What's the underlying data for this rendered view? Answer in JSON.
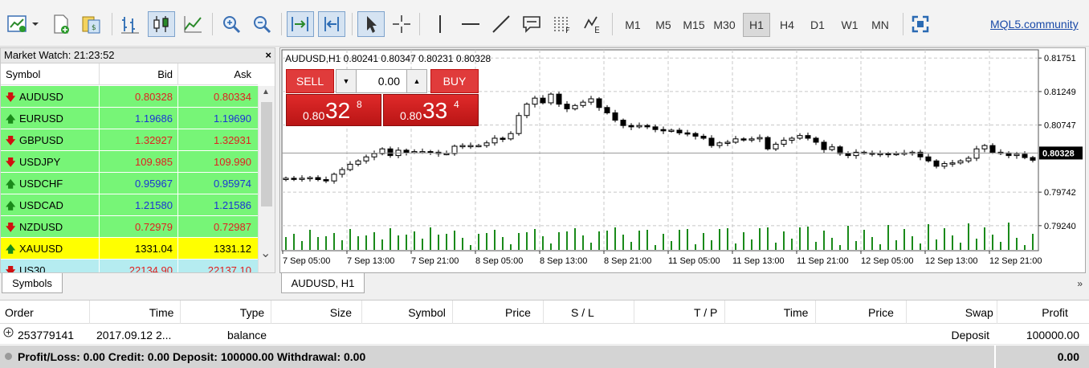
{
  "toolbar": {
    "timeframes": [
      "M1",
      "M5",
      "M15",
      "M30",
      "H1",
      "H4",
      "D1",
      "W1",
      "MN"
    ],
    "active_timeframe": "H1",
    "link_label": "MQL5.community"
  },
  "market_watch": {
    "title": "Market Watch: 21:23:52",
    "close_label": "×",
    "columns": {
      "symbol": "Symbol",
      "bid": "Bid",
      "ask": "Ask"
    },
    "rows": [
      {
        "symbol": "AUDUSD",
        "bid": "0.80328",
        "ask": "0.80334",
        "dir": "down",
        "bg": "#77f577",
        "color": "#e02020"
      },
      {
        "symbol": "EURUSD",
        "bid": "1.19686",
        "ask": "1.19690",
        "dir": "up",
        "bg": "#77f577",
        "color": "#1a35d6"
      },
      {
        "symbol": "GBPUSD",
        "bid": "1.32927",
        "ask": "1.32931",
        "dir": "down",
        "bg": "#77f577",
        "color": "#e02020"
      },
      {
        "symbol": "USDJPY",
        "bid": "109.985",
        "ask": "109.990",
        "dir": "down",
        "bg": "#77f577",
        "color": "#e02020"
      },
      {
        "symbol": "USDCHF",
        "bid": "0.95967",
        "ask": "0.95974",
        "dir": "up",
        "bg": "#77f577",
        "color": "#1a35d6"
      },
      {
        "symbol": "USDCAD",
        "bid": "1.21580",
        "ask": "1.21586",
        "dir": "up",
        "bg": "#77f577",
        "color": "#1a35d6"
      },
      {
        "symbol": "NZDUSD",
        "bid": "0.72979",
        "ask": "0.72987",
        "dir": "down",
        "bg": "#77f577",
        "color": "#e02020"
      },
      {
        "symbol": "XAUUSD",
        "bid": "1331.04",
        "ask": "1331.12",
        "dir": "up",
        "bg": "#ffff00",
        "color": "#000000"
      },
      {
        "symbol": "US30",
        "bid": "22134.90",
        "ask": "22137.10",
        "dir": "down",
        "bg": "#b5ecf0",
        "color": "#e02020"
      }
    ],
    "tab_label": "Symbols"
  },
  "chart": {
    "header": "AUDUSD,H1  0.80241  0.80347  0.80231  0.80328",
    "tab_label": "AUDUSD, H1",
    "current_price": "0.80328",
    "price_labels": [
      "0.81751",
      "0.81249",
      "0.80747",
      "0.79742",
      "0.79240"
    ],
    "time_labels": [
      "7 Sep 05:00",
      "7 Sep 13:00",
      "7 Sep 21:00",
      "8 Sep 05:00",
      "8 Sep 13:00",
      "8 Sep 21:00",
      "11 Sep 05:00",
      "11 Sep 13:00",
      "11 Sep 21:00",
      "12 Sep 05:00",
      "12 Sep 13:00",
      "12 Sep 21:00"
    ],
    "trade_panel": {
      "sell_label": "SELL",
      "buy_label": "BUY",
      "lot_value": "0.00",
      "sell_price": {
        "small": "0.80",
        "big": "32",
        "sup": "8"
      },
      "buy_price": {
        "small": "0.80",
        "big": "33",
        "sup": "4"
      }
    },
    "colors": {
      "volume": "#1a8a1a",
      "grid": "#c8c8c8"
    }
  },
  "chart_data": {
    "type": "candlestick",
    "symbol": "AUDUSD",
    "timeframe": "H1",
    "y_ticks": [
      0.81751,
      0.81249,
      0.80747,
      0.79742,
      0.7924
    ],
    "ylim": [
      0.78865,
      0.81874
    ],
    "current_price": 0.80328,
    "x_ticks": [
      "7 Sep 05:00",
      "7 Sep 13:00",
      "7 Sep 21:00",
      "8 Sep 05:00",
      "8 Sep 13:00",
      "8 Sep 21:00",
      "11 Sep 05:00",
      "11 Sep 13:00",
      "11 Sep 21:00",
      "12 Sep 05:00",
      "12 Sep 13:00",
      "12 Sep 21:00"
    ],
    "closes": [
      0.7995,
      0.7994,
      0.7995,
      0.7996,
      0.7993,
      0.7991,
      0.8001,
      0.8008,
      0.8016,
      0.8021,
      0.8027,
      0.8032,
      0.8039,
      0.8029,
      0.8037,
      0.8034,
      0.8035,
      0.8035,
      0.8034,
      0.8032,
      0.8032,
      0.8043,
      0.8044,
      0.8044,
      0.8044,
      0.8048,
      0.8055,
      0.8054,
      0.8062,
      0.8089,
      0.8106,
      0.8115,
      0.8108,
      0.8121,
      0.8106,
      0.8099,
      0.8104,
      0.8109,
      0.8114,
      0.8101,
      0.8093,
      0.8082,
      0.8074,
      0.8072,
      0.8074,
      0.8072,
      0.8068,
      0.8066,
      0.8067,
      0.8063,
      0.8062,
      0.8058,
      0.8055,
      0.8044,
      0.8048,
      0.8049,
      0.8054,
      0.8053,
      0.8054,
      0.8056,
      0.8039,
      0.8046,
      0.8052,
      0.8055,
      0.8059,
      0.8055,
      0.8049,
      0.8038,
      0.8042,
      0.8032,
      0.8029,
      0.8034,
      0.8033,
      0.8031,
      0.8032,
      0.8031,
      0.8032,
      0.8033,
      0.8034,
      0.8027,
      0.8021,
      0.8013,
      0.8017,
      0.8018,
      0.8021,
      0.8025,
      0.8039,
      0.8044,
      0.8034,
      0.8033,
      0.8029,
      0.8031,
      0.8026,
      0.8022,
      0.8032,
      0.8039,
      0.8038,
      0.8031,
      0.8033
    ],
    "volume_max_rel": 1.0
  },
  "terminal": {
    "columns": [
      "Order",
      "Time",
      "Type",
      "Size",
      "Symbol",
      "Price",
      "S / L",
      "T / P",
      "Time",
      "Price",
      "Swap",
      "Profit"
    ],
    "row": {
      "order": "253779141",
      "time": "2017.09.12 2...",
      "type": "balance",
      "comment": "Deposit",
      "profit": "100000.00"
    },
    "summary": "Profit/Loss: 0.00  Credit: 0.00  Deposit: 100000.00  Withdrawal: 0.00",
    "summary_value": "0.00"
  },
  "tab_more": "»"
}
